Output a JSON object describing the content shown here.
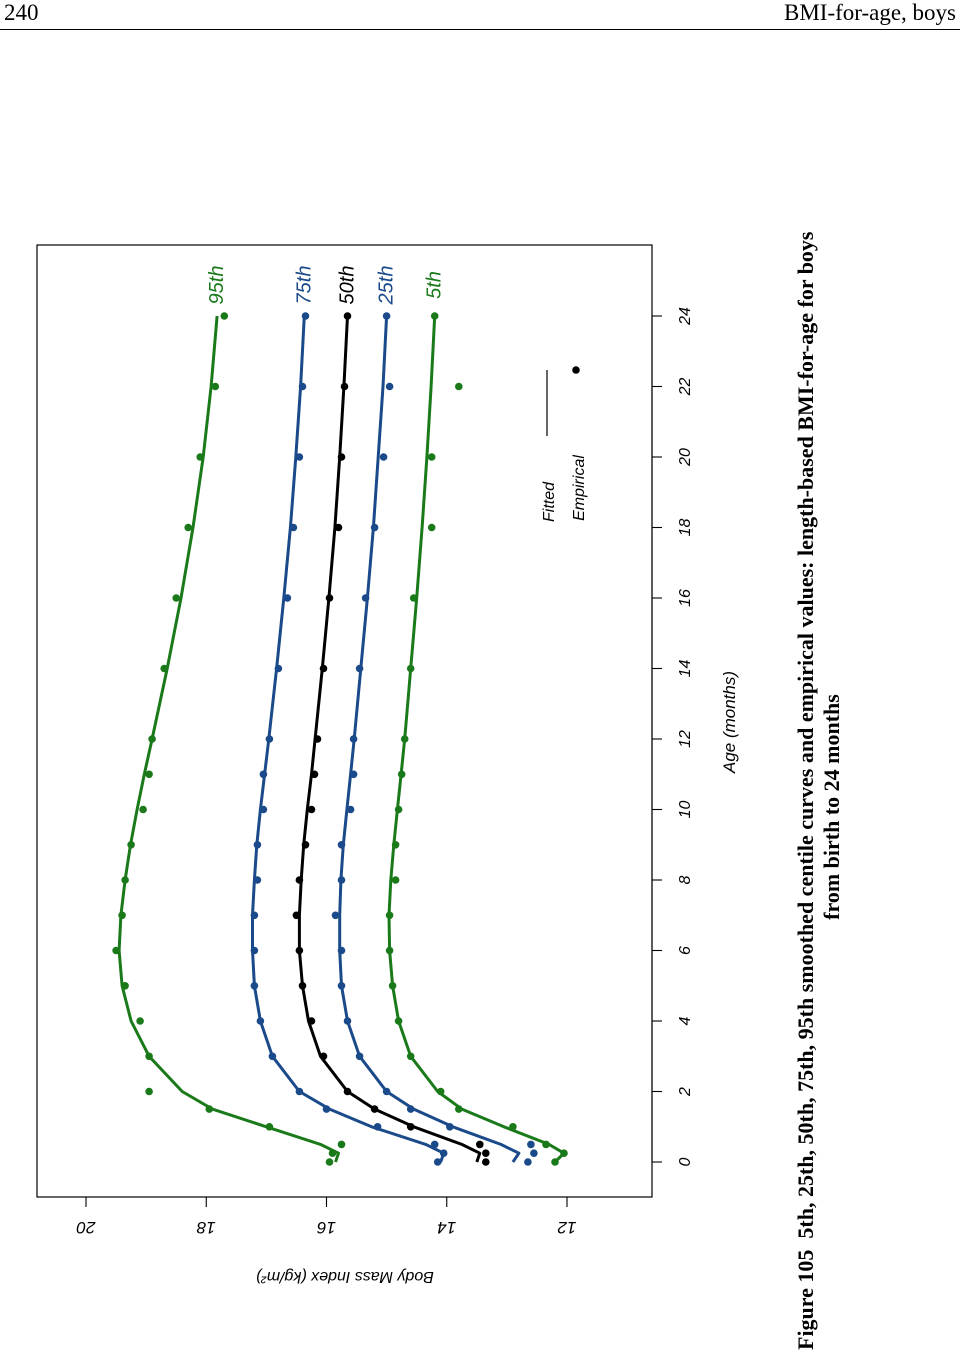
{
  "header": {
    "page_number": "240",
    "running_title": "BMI-for-age, boys"
  },
  "caption": {
    "label": "Figure 105",
    "line1": "5th, 25th, 50th, 75th, 95th smoothed centile curves and empirical values: length-based BMI-for-age for boys",
    "line2": "from birth to 24 months"
  },
  "legend": {
    "fitted": "Fitted",
    "empirical": "Empirical"
  },
  "colors": {
    "green": "#1a7a1a",
    "blue": "#1a4a8a",
    "black": "#000000"
  },
  "chart_data": {
    "type": "line",
    "orientation": "rotated-90-clockwise",
    "xlabel": "Age (months)",
    "ylabel": "Body Mass Index (kg/m²)",
    "xlim": [
      0,
      24
    ],
    "ylim": [
      12,
      20
    ],
    "x_ticks": [
      "0",
      "2",
      "4",
      "6",
      "8",
      "10",
      "12",
      "14",
      "16",
      "18",
      "20",
      "22",
      "24"
    ],
    "y_ticks": [
      "12",
      "14",
      "16",
      "18",
      "20"
    ],
    "legend_placement": "bottom-right",
    "series": [
      {
        "name": "5th",
        "color": "green",
        "fitted_x": [
          0,
          0.25,
          0.5,
          1,
          1.5,
          2,
          3,
          4,
          5,
          6,
          7,
          8,
          9,
          10,
          11,
          12,
          14,
          16,
          18,
          20,
          22,
          24
        ],
        "fitted_y": [
          12.2,
          12.05,
          12.3,
          13.05,
          13.75,
          14.15,
          14.6,
          14.8,
          14.9,
          14.95,
          14.96,
          14.93,
          14.88,
          14.82,
          14.76,
          14.7,
          14.6,
          14.5,
          14.41,
          14.33,
          14.26,
          14.2
        ],
        "empirical_x": [
          0,
          0.25,
          0.5,
          1,
          1.5,
          2,
          3,
          4,
          5,
          6,
          7,
          8,
          9,
          10,
          11,
          12,
          14,
          16,
          18,
          20,
          22,
          24
        ],
        "empirical_y": [
          12.2,
          12.05,
          12.35,
          12.9,
          13.8,
          14.1,
          14.6,
          14.8,
          14.9,
          14.95,
          14.95,
          14.85,
          14.85,
          14.8,
          14.75,
          14.7,
          14.6,
          14.55,
          14.25,
          14.25,
          13.8,
          14.2
        ]
      },
      {
        "name": "25th",
        "color": "blue",
        "fitted_x": [
          0,
          0.25,
          0.5,
          1,
          1.5,
          2,
          3,
          4,
          5,
          6,
          7,
          8,
          9,
          10,
          11,
          12,
          14,
          16,
          18,
          20,
          22,
          24
        ],
        "fitted_y": [
          12.9,
          12.8,
          13.1,
          13.9,
          14.55,
          15.0,
          15.45,
          15.65,
          15.75,
          15.78,
          15.78,
          15.76,
          15.72,
          15.66,
          15.6,
          15.54,
          15.43,
          15.32,
          15.22,
          15.14,
          15.06,
          15.0
        ],
        "empirical_x": [
          0,
          0.25,
          0.5,
          1,
          1.5,
          2,
          3,
          4,
          5,
          6,
          7,
          8,
          9,
          10,
          11,
          12,
          14,
          16,
          18,
          20,
          22,
          24
        ],
        "empirical_y": [
          12.65,
          12.55,
          12.6,
          13.95,
          14.6,
          15.0,
          15.45,
          15.65,
          15.75,
          15.75,
          15.85,
          15.75,
          15.75,
          15.6,
          15.55,
          15.55,
          15.45,
          15.35,
          15.2,
          15.05,
          14.95,
          15.0
        ]
      },
      {
        "name": "50th",
        "color": "black",
        "fitted_x": [
          0,
          0.25,
          0.5,
          1,
          1.5,
          2,
          3,
          4,
          5,
          6,
          7,
          8,
          9,
          10,
          11,
          12,
          14,
          16,
          18,
          20,
          22,
          24
        ],
        "fitted_y": [
          13.5,
          13.45,
          13.75,
          14.55,
          15.2,
          15.65,
          16.1,
          16.3,
          16.4,
          16.45,
          16.45,
          16.42,
          16.38,
          16.32,
          16.25,
          16.19,
          16.07,
          15.96,
          15.86,
          15.78,
          15.71,
          15.65
        ],
        "empirical_x": [
          0,
          0.25,
          0.5,
          1,
          1.5,
          2,
          3,
          4,
          5,
          6,
          7,
          8,
          9,
          10,
          11,
          12,
          14,
          16,
          18,
          20,
          22,
          24
        ],
        "empirical_y": [
          13.35,
          13.35,
          13.45,
          14.6,
          15.2,
          15.65,
          16.05,
          16.25,
          16.4,
          16.45,
          16.5,
          16.45,
          16.35,
          16.25,
          16.2,
          16.15,
          16.05,
          15.95,
          15.8,
          15.75,
          15.7,
          15.65
        ]
      },
      {
        "name": "75th",
        "color": "blue",
        "fitted_x": [
          0,
          0.25,
          0.5,
          1,
          1.5,
          2,
          3,
          4,
          5,
          6,
          7,
          8,
          9,
          10,
          11,
          12,
          14,
          16,
          18,
          20,
          22,
          24
        ],
        "fitted_y": [
          14.1,
          14.05,
          14.35,
          15.25,
          15.95,
          16.45,
          16.9,
          17.1,
          17.2,
          17.23,
          17.23,
          17.2,
          17.16,
          17.1,
          17.03,
          16.96,
          16.83,
          16.71,
          16.6,
          16.51,
          16.43,
          16.37
        ],
        "empirical_x": [
          0,
          0.25,
          0.5,
          1,
          1.5,
          2,
          3,
          4,
          5,
          6,
          7,
          8,
          9,
          10,
          11,
          12,
          14,
          16,
          18,
          20,
          22,
          24
        ],
        "empirical_y": [
          14.15,
          14.05,
          14.2,
          15.15,
          16.0,
          16.45,
          16.9,
          17.1,
          17.2,
          17.2,
          17.2,
          17.15,
          17.15,
          17.05,
          17.05,
          16.95,
          16.8,
          16.65,
          16.55,
          16.45,
          16.4,
          16.35
        ]
      },
      {
        "name": "95th",
        "color": "green",
        "fitted_x": [
          0,
          0.25,
          0.5,
          1,
          1.5,
          2,
          3,
          4,
          5,
          6,
          7,
          8,
          9,
          10,
          11,
          12,
          14,
          16,
          18,
          20,
          22,
          24
        ],
        "fitted_y": [
          15.85,
          15.8,
          16.1,
          17.0,
          17.9,
          18.4,
          18.95,
          19.25,
          19.4,
          19.45,
          19.42,
          19.35,
          19.26,
          19.15,
          19.03,
          18.9,
          18.65,
          18.42,
          18.22,
          18.05,
          17.92,
          17.82
        ],
        "empirical_x": [
          0,
          0.25,
          0.5,
          1,
          1.5,
          2,
          3,
          4,
          5,
          6,
          7,
          8,
          9,
          10,
          11,
          12,
          14,
          16,
          18,
          20,
          22,
          24
        ],
        "empirical_y": [
          15.95,
          15.9,
          15.75,
          16.95,
          17.95,
          18.95,
          18.95,
          19.1,
          19.35,
          19.5,
          19.4,
          19.35,
          19.25,
          19.05,
          18.95,
          18.9,
          18.7,
          18.5,
          18.3,
          18.1,
          17.85,
          17.7
        ]
      }
    ]
  }
}
